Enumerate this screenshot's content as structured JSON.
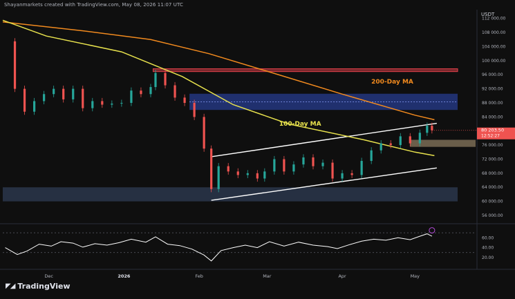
{
  "header": {
    "attribution": "Shayanmarkets created with TradingView.com, May 08, 2026 11:07 UTC"
  },
  "unit": "USDT",
  "brand": {
    "name": "TradingView",
    "logo_icon": "tradingview-logo-icon"
  },
  "chart_data": [
    {
      "type": "candlestick",
      "price_axis": {
        "ticks": [
          {
            "label": "112 000.00",
            "v": 112000
          },
          {
            "label": "108 000.00",
            "v": 108000
          },
          {
            "label": "104 000.00",
            "v": 104000
          },
          {
            "label": "100 000.00",
            "v": 100000
          },
          {
            "label": "96 000.00",
            "v": 96000
          },
          {
            "label": "92 000.00",
            "v": 92000
          },
          {
            "label": "88 000.00",
            "v": 88000
          },
          {
            "label": "84 000.00",
            "v": 84000
          },
          {
            "label": "80 000.00",
            "v": 80000
          },
          {
            "label": "76 000.00",
            "v": 76000
          },
          {
            "label": "72 000.00",
            "v": 72000
          },
          {
            "label": "68 000.00",
            "v": 68000
          },
          {
            "label": "64 000.00",
            "v": 64000
          },
          {
            "label": "60 000.00",
            "v": 60000
          },
          {
            "label": "56 000.00",
            "v": 56000
          }
        ],
        "range": [
          56000,
          114500
        ]
      },
      "time_axis": [
        {
          "label": "Dec",
          "d": "2025-12-01"
        },
        {
          "label": "2026",
          "d": "2026-01-01"
        },
        {
          "label": "Feb",
          "d": "2026-02-01"
        },
        {
          "label": "Mar",
          "d": "2026-03-01"
        },
        {
          "label": "Apr",
          "d": "2026-04-01"
        },
        {
          "label": "May",
          "d": "2026-05-01"
        }
      ],
      "date_range": [
        "2025-11-12",
        "2026-05-26"
      ],
      "last_price": {
        "label": "80 203.50",
        "v": 80200,
        "countdown": "12:52:27"
      },
      "price_data": [
        [
          "2025-11-13",
          105500
        ],
        [
          "2025-11-17",
          92000
        ],
        [
          "2025-11-21",
          85500
        ],
        [
          "2025-11-25",
          88500
        ],
        [
          "2025-11-29",
          90500
        ],
        [
          "2025-12-03",
          92000
        ],
        [
          "2025-12-07",
          89000
        ],
        [
          "2025-12-11",
          92000
        ],
        [
          "2025-12-15",
          86500
        ],
        [
          "2025-12-19",
          88500
        ],
        [
          "2025-12-23",
          87500
        ],
        [
          "2025-12-27",
          87800
        ],
        [
          "2025-12-31",
          88000
        ],
        [
          "2026-01-04",
          91500
        ],
        [
          "2026-01-08",
          90500
        ],
        [
          "2026-01-12",
          92500
        ],
        [
          "2026-01-14",
          96500
        ],
        [
          "2026-01-18",
          93000
        ],
        [
          "2026-01-22",
          89500
        ],
        [
          "2026-01-26",
          88000
        ],
        [
          "2026-01-30",
          84000
        ],
        [
          "2026-02-03",
          75000
        ],
        [
          "2026-02-06",
          63500
        ],
        [
          "2026-02-09",
          70000
        ],
        [
          "2026-02-13",
          68500
        ],
        [
          "2026-02-17",
          67500
        ],
        [
          "2026-02-21",
          68000
        ],
        [
          "2026-02-25",
          66500
        ],
        [
          "2026-02-28",
          68500
        ],
        [
          "2026-03-04",
          72000
        ],
        [
          "2026-03-08",
          68500
        ],
        [
          "2026-03-12",
          70500
        ],
        [
          "2026-03-16",
          72500
        ],
        [
          "2026-03-20",
          70000
        ],
        [
          "2026-03-24",
          71000
        ],
        [
          "2026-03-28",
          66500
        ],
        [
          "2026-04-01",
          68000
        ],
        [
          "2026-04-05",
          67500
        ],
        [
          "2026-04-09",
          71500
        ],
        [
          "2026-04-13",
          74500
        ],
        [
          "2026-04-17",
          76500
        ],
        [
          "2026-04-21",
          76000
        ],
        [
          "2026-04-25",
          78500
        ],
        [
          "2026-04-29",
          76500
        ],
        [
          "2026-05-03",
          79500
        ],
        [
          "2026-05-06",
          81500
        ],
        [
          "2026-05-08",
          80200
        ]
      ],
      "moving_averages": [
        {
          "name": "200-Day MA",
          "color": "#f28a1e",
          "points": [
            [
              "2025-11-12",
              111000
            ],
            [
              "2025-12-15",
              108500
            ],
            [
              "2026-01-12",
              106000
            ],
            [
              "2026-02-05",
              102000
            ],
            [
              "2026-03-01",
              97000
            ],
            [
              "2026-04-01",
              90500
            ],
            [
              "2026-05-01",
              84500
            ],
            [
              "2026-05-09",
              83200
            ]
          ]
        },
        {
          "name": "100-Day MA",
          "color": "#e8e24d",
          "points": [
            [
              "2025-11-12",
              111500
            ],
            [
              "2025-11-30",
              107000
            ],
            [
              "2025-12-31",
              102500
            ],
            [
              "2026-01-25",
              95500
            ],
            [
              "2026-02-15",
              87500
            ],
            [
              "2026-03-10",
              82000
            ],
            [
              "2026-04-10",
              77500
            ],
            [
              "2026-05-01",
              74000
            ],
            [
              "2026-05-09",
              73000
            ]
          ]
        }
      ],
      "channel": {
        "upper": [
          [
            "2026-02-06",
            72700
          ],
          [
            "2026-05-10",
            82200
          ]
        ],
        "lower": [
          [
            "2026-02-06",
            60300
          ],
          [
            "2026-05-10",
            69500
          ]
        ]
      },
      "zones": [
        {
          "kind": "resistance",
          "color": "#e0404a",
          "range": [
            96900,
            97700
          ]
        },
        {
          "kind": "supply",
          "color": "#2f4dbd",
          "range": [
            86000,
            90600
          ]
        },
        {
          "kind": "support",
          "color": "#3b4d6e",
          "range": [
            60000,
            64000
          ]
        },
        {
          "kind": "demand",
          "color": "#8a7a5f",
          "range": [
            75500,
            77500
          ]
        }
      ],
      "annotations": [
        "200-Day MA",
        "100-Day MA"
      ]
    },
    {
      "type": "line",
      "indicator": "RSI",
      "ticks": [
        {
          "label": "60.00",
          "v": 60
        },
        {
          "label": "40.00",
          "v": 40
        },
        {
          "label": "20.00",
          "v": 20
        }
      ],
      "range": [
        10,
        80
      ],
      "levels": [
        70,
        30
      ],
      "values": [
        [
          "2025-11-13",
          40
        ],
        [
          "2025-11-18",
          26
        ],
        [
          "2025-11-22",
          33
        ],
        [
          "2025-11-27",
          47
        ],
        [
          "2025-12-02",
          43
        ],
        [
          "2025-12-06",
          52
        ],
        [
          "2025-12-11",
          49
        ],
        [
          "2025-12-15",
          41
        ],
        [
          "2025-12-20",
          48
        ],
        [
          "2025-12-25",
          45
        ],
        [
          "2025-12-30",
          50
        ],
        [
          "2026-01-04",
          57
        ],
        [
          "2026-01-10",
          51
        ],
        [
          "2026-01-14",
          62
        ],
        [
          "2026-01-19",
          47
        ],
        [
          "2026-01-24",
          44
        ],
        [
          "2026-01-29",
          37
        ],
        [
          "2026-02-03",
          25
        ],
        [
          "2026-02-06",
          13
        ],
        [
          "2026-02-10",
          34
        ],
        [
          "2026-02-15",
          40
        ],
        [
          "2026-02-20",
          45
        ],
        [
          "2026-02-25",
          40
        ],
        [
          "2026-03-02",
          52
        ],
        [
          "2026-03-08",
          43
        ],
        [
          "2026-03-14",
          51
        ],
        [
          "2026-03-20",
          45
        ],
        [
          "2026-03-26",
          42
        ],
        [
          "2026-03-30",
          38
        ],
        [
          "2026-04-04",
          46
        ],
        [
          "2026-04-09",
          53
        ],
        [
          "2026-04-14",
          57
        ],
        [
          "2026-04-19",
          55
        ],
        [
          "2026-04-24",
          60
        ],
        [
          "2026-04-29",
          56
        ],
        [
          "2026-05-03",
          63
        ],
        [
          "2026-05-06",
          68
        ],
        [
          "2026-05-08",
          63
        ]
      ]
    }
  ]
}
